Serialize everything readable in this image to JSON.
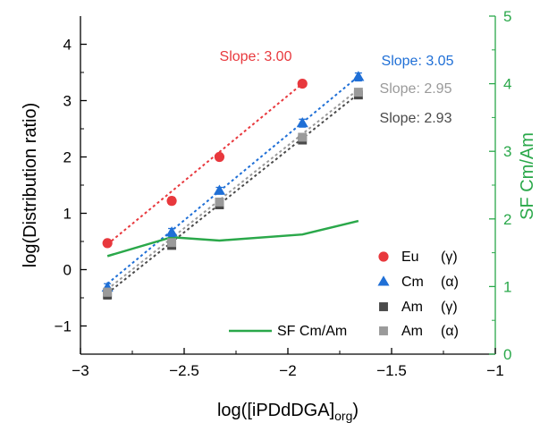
{
  "chart_data": {
    "type": "scatter",
    "xlabel": "log([iPDdDGA]",
    "xlabel_sub": "org",
    "xlabel_close": ")",
    "ylabel": "log(Distribution ratio)",
    "y2label": "SF Cm/Am",
    "xlim": [
      -3,
      -1
    ],
    "ylim": [
      -1.5,
      4.5
    ],
    "y2lim": [
      0,
      5
    ],
    "x_ticks": [
      -3,
      -2.5,
      -2,
      -1.5,
      -1
    ],
    "x_tick_labels": [
      "−3",
      "−2.5",
      "−2",
      "−1.5",
      "−1"
    ],
    "y_ticks": [
      -1,
      0,
      1,
      2,
      3,
      4
    ],
    "y_tick_labels": [
      "−1",
      "0",
      "1",
      "2",
      "3",
      "4"
    ],
    "y2_ticks": [
      0,
      1,
      2,
      3,
      4,
      5
    ],
    "y2_tick_labels": [
      "0",
      "1",
      "2",
      "3",
      "4",
      "5"
    ],
    "grid": false,
    "legend_position": "bottom-right",
    "series": [
      {
        "name": "Eu",
        "radiation": "(γ)",
        "marker": "circle",
        "color": "#e8383d",
        "x": [
          -2.87,
          -2.56,
          -2.33,
          -1.93
        ],
        "y": [
          0.47,
          1.22,
          2.0,
          3.3
        ],
        "err": [
          0.05,
          0.06,
          0.05,
          0.05
        ],
        "fit": {
          "x": [
            -2.87,
            -1.93
          ],
          "y": [
            0.45,
            3.3
          ]
        },
        "slope_label": "Slope: 3.00"
      },
      {
        "name": "Cm",
        "radiation": "(α)",
        "marker": "triangle",
        "color": "#1f6fd6",
        "x": [
          -2.87,
          -2.56,
          -2.33,
          -1.93,
          -1.66
        ],
        "y": [
          -0.32,
          0.66,
          1.4,
          2.6,
          3.42
        ],
        "err": [
          0.07,
          0.07,
          0.06,
          0.07,
          0.07
        ],
        "fit": {
          "x": [
            -2.87,
            -1.66
          ],
          "y": [
            -0.25,
            3.43
          ]
        },
        "slope_label": "Slope: 3.05"
      },
      {
        "name": "Am",
        "radiation": "(γ)",
        "marker": "square",
        "color": "#4a4a4a",
        "x": [
          -2.87,
          -2.56,
          -2.33,
          -1.93,
          -1.66
        ],
        "y": [
          -0.45,
          0.43,
          1.15,
          2.3,
          3.1
        ],
        "err": [
          0.07,
          0.06,
          0.06,
          0.06,
          0.06
        ],
        "fit": {
          "x": [
            -2.87,
            -1.66
          ],
          "y": [
            -0.42,
            3.12
          ]
        },
        "slope_label": "Slope: 2.93"
      },
      {
        "name": "Am",
        "radiation": "(α)",
        "marker": "square",
        "color": "#9a9a9a",
        "x": [
          -2.87,
          -2.56,
          -2.33,
          -1.93,
          -1.66
        ],
        "y": [
          -0.4,
          0.48,
          1.2,
          2.35,
          3.15
        ],
        "err": [
          0.07,
          0.06,
          0.06,
          0.06,
          0.06
        ],
        "fit": {
          "x": [
            -2.87,
            -1.66
          ],
          "y": [
            -0.35,
            3.2
          ]
        },
        "slope_label": "Slope: 2.95"
      }
    ],
    "sf_series": {
      "name": "SF Cm/Am",
      "color": "#2aa84a",
      "axis": "right",
      "x": [
        -2.87,
        -2.56,
        -2.33,
        -1.93,
        -1.66
      ],
      "y": [
        1.45,
        1.73,
        1.68,
        1.77,
        1.97
      ]
    }
  }
}
